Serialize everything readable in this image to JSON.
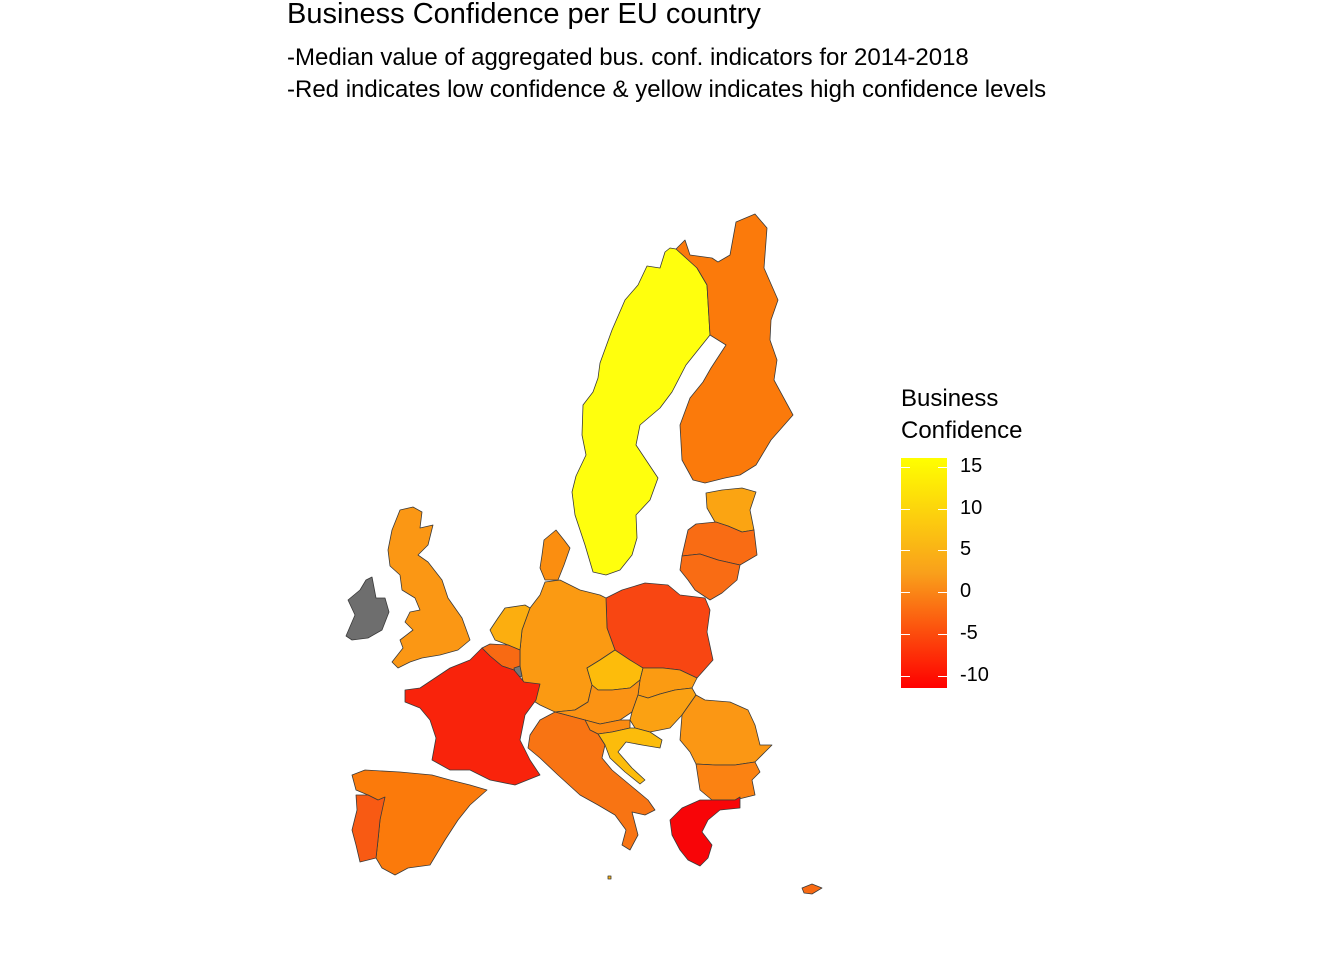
{
  "title": "Business Confidence per EU country",
  "subtitle_lines": [
    "-Median value of aggregated bus. conf. indicators for 2014-2018",
    "-Red indicates low confidence & yellow indicates high confidence levels"
  ],
  "legend": {
    "title_lines": [
      "Business",
      "Confidence"
    ],
    "ticks": [
      "15",
      "10",
      "5",
      "0",
      "-5",
      "-10"
    ],
    "low_color": "#ff0000",
    "high_color": "#ffff00"
  },
  "missing_color": "#6e6e6e",
  "countries": [
    {
      "id": "sweden",
      "color": "#ffff0d"
    },
    {
      "id": "finland",
      "color": "#fb7a0b"
    },
    {
      "id": "estonia",
      "color": "#fba412"
    },
    {
      "id": "latvia",
      "color": "#f96c14"
    },
    {
      "id": "lithuania",
      "color": "#f96c14"
    },
    {
      "id": "poland",
      "color": "#f84612"
    },
    {
      "id": "denmark",
      "color": "#fb8e10"
    },
    {
      "id": "germany",
      "color": "#fb9a12"
    },
    {
      "id": "netherlands",
      "color": "#fcae0f"
    },
    {
      "id": "belgium",
      "color": "#f86a13"
    },
    {
      "id": "luxembourg",
      "color": "#777777"
    },
    {
      "id": "france",
      "color": "#f9230b"
    },
    {
      "id": "united-kingdom",
      "color": "#fb9714"
    },
    {
      "id": "ireland",
      "color": "#6e6e6e"
    },
    {
      "id": "czechia",
      "color": "#fdbc0b"
    },
    {
      "id": "slovakia",
      "color": "#fb9b12"
    },
    {
      "id": "austria",
      "color": "#fb9314"
    },
    {
      "id": "hungary",
      "color": "#fba112"
    },
    {
      "id": "slovenia",
      "color": "#fb8b12"
    },
    {
      "id": "croatia",
      "color": "#fcbc0b"
    },
    {
      "id": "romania",
      "color": "#fb9714"
    },
    {
      "id": "bulgaria",
      "color": "#fb8212"
    },
    {
      "id": "greece",
      "color": "#f80508"
    },
    {
      "id": "italy",
      "color": "#f87413"
    },
    {
      "id": "spain",
      "color": "#fb7a0b"
    },
    {
      "id": "portugal",
      "color": "#f85a13"
    },
    {
      "id": "cyprus",
      "color": "#f86a13"
    },
    {
      "id": "malta",
      "color": "#fcb20f"
    }
  ]
}
